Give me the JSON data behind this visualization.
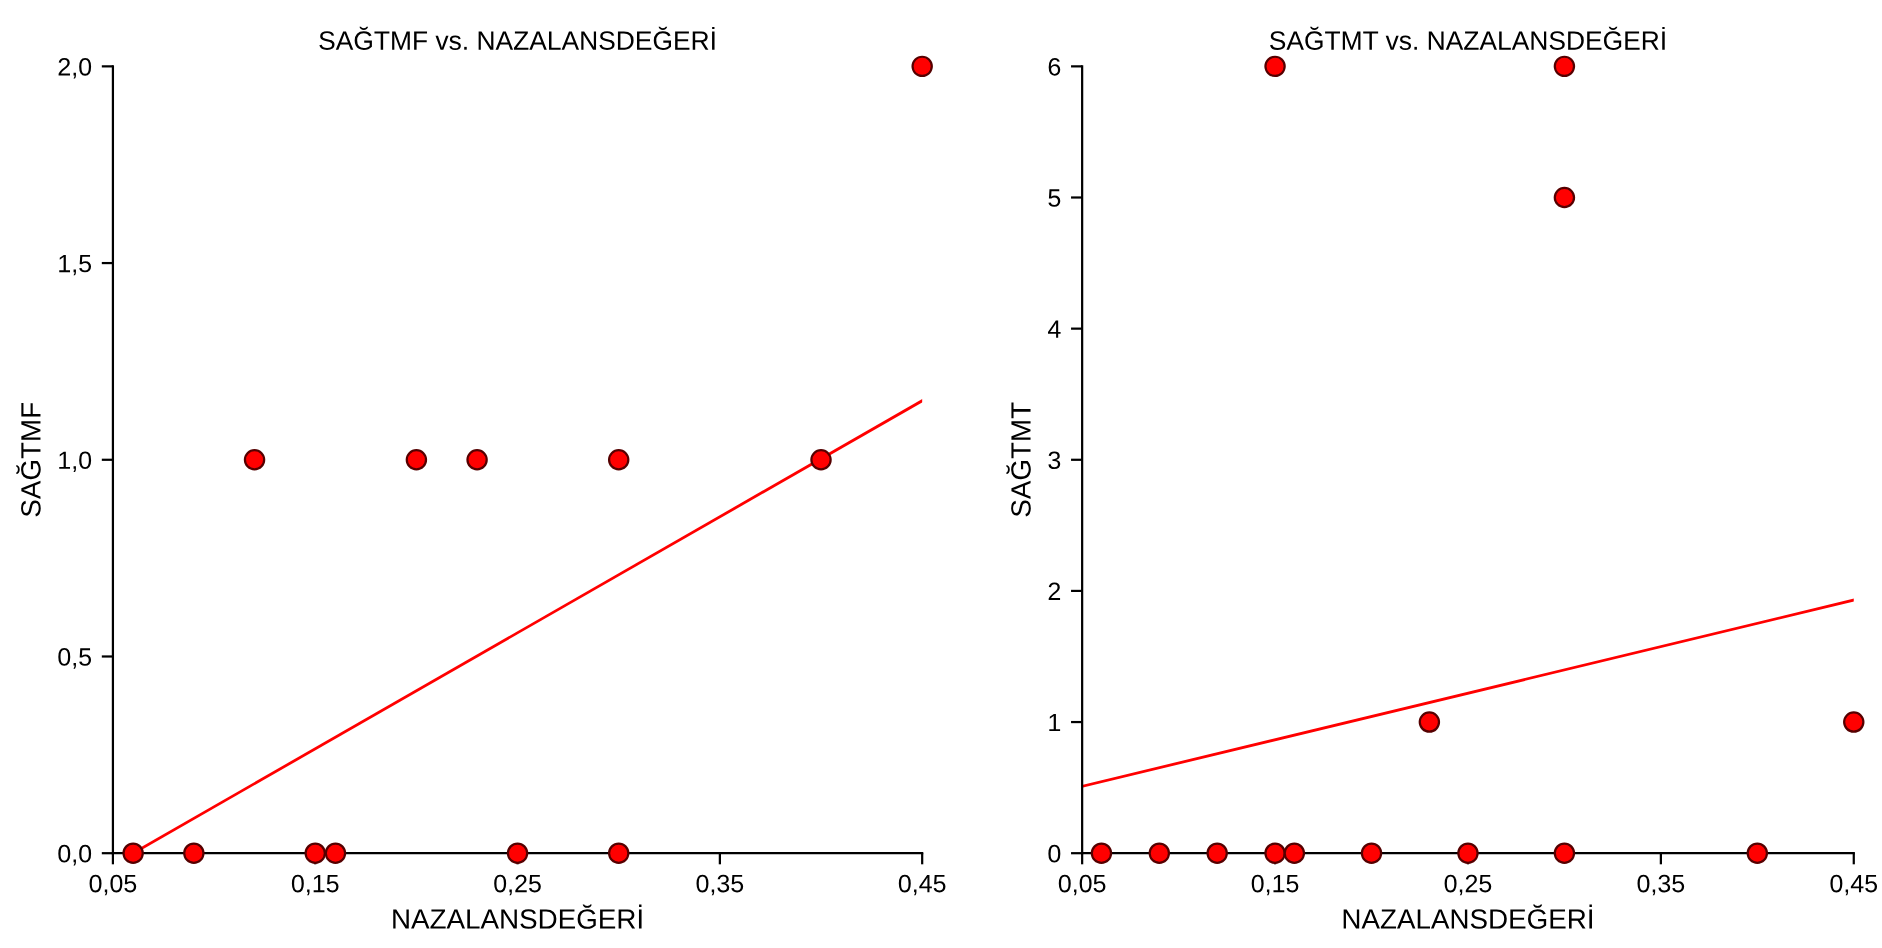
{
  "chart_data": [
    {
      "type": "scatter",
      "title": "SAĞTMF vs. NAZALANSDEĞERİ",
      "xlabel": "NAZALANSDEĞERİ",
      "ylabel": "SAĞTMF",
      "xlim": [
        0.05,
        0.45
      ],
      "ylim": [
        0,
        2.0
      ],
      "xticks": [
        {
          "value": 0.05,
          "label": "0,05"
        },
        {
          "value": 0.15,
          "label": "0,15"
        },
        {
          "value": 0.25,
          "label": "0,25"
        },
        {
          "value": 0.35,
          "label": "0,35"
        },
        {
          "value": 0.45,
          "label": "0,45"
        }
      ],
      "yticks": [
        {
          "value": 0,
          "label": "0,0"
        },
        {
          "value": 0.5,
          "label": "0,5"
        },
        {
          "value": 1.0,
          "label": "1,0"
        },
        {
          "value": 1.5,
          "label": "1,5"
        },
        {
          "value": 2.0,
          "label": "2,0"
        }
      ],
      "grid": false,
      "legend": false,
      "series": [
        {
          "marker": "circle",
          "color": "#ff0000",
          "x": [
            0.06,
            0.09,
            0.12,
            0.15,
            0.16,
            0.2,
            0.23,
            0.25,
            0.3,
            0.3,
            0.4,
            0.45
          ],
          "values": [
            0,
            0,
            1,
            0,
            0,
            1,
            1,
            0,
            1,
            0,
            1,
            2
          ]
        },
        {
          "type": "line",
          "marker": "none",
          "color": "#ff0000",
          "x": [
            0.06,
            0.45
          ],
          "values": [
            0,
            1.15
          ]
        }
      ]
    },
    {
      "type": "scatter",
      "title": "SAĞTMT vs. NAZALANSDEĞERİ",
      "xlabel": "NAZALANSDEĞERİ",
      "ylabel": "SAĞTMT",
      "xlim": [
        0.05,
        0.45
      ],
      "ylim": [
        0,
        6
      ],
      "xticks": [
        {
          "value": 0.05,
          "label": "0,05"
        },
        {
          "value": 0.15,
          "label": "0,15"
        },
        {
          "value": 0.25,
          "label": "0,25"
        },
        {
          "value": 0.35,
          "label": "0,35"
        },
        {
          "value": 0.45,
          "label": "0,45"
        }
      ],
      "yticks": [
        0,
        1,
        2,
        3,
        4,
        5,
        6
      ],
      "grid": false,
      "legend": false,
      "series": [
        {
          "marker": "circle",
          "color": "#ff0000",
          "x": [
            0.06,
            0.09,
            0.12,
            0.15,
            0.15,
            0.16,
            0.2,
            0.23,
            0.25,
            0.3,
            0.3,
            0.3,
            0.4,
            0.45
          ],
          "values": [
            0,
            0,
            0,
            6,
            0,
            0,
            0,
            1,
            0,
            6,
            5,
            0,
            0,
            1
          ]
        },
        {
          "type": "line",
          "marker": "none",
          "color": "#ff0000",
          "x": [
            0.05,
            0.45
          ],
          "values": [
            0.51,
            1.93
          ]
        }
      ]
    }
  ]
}
